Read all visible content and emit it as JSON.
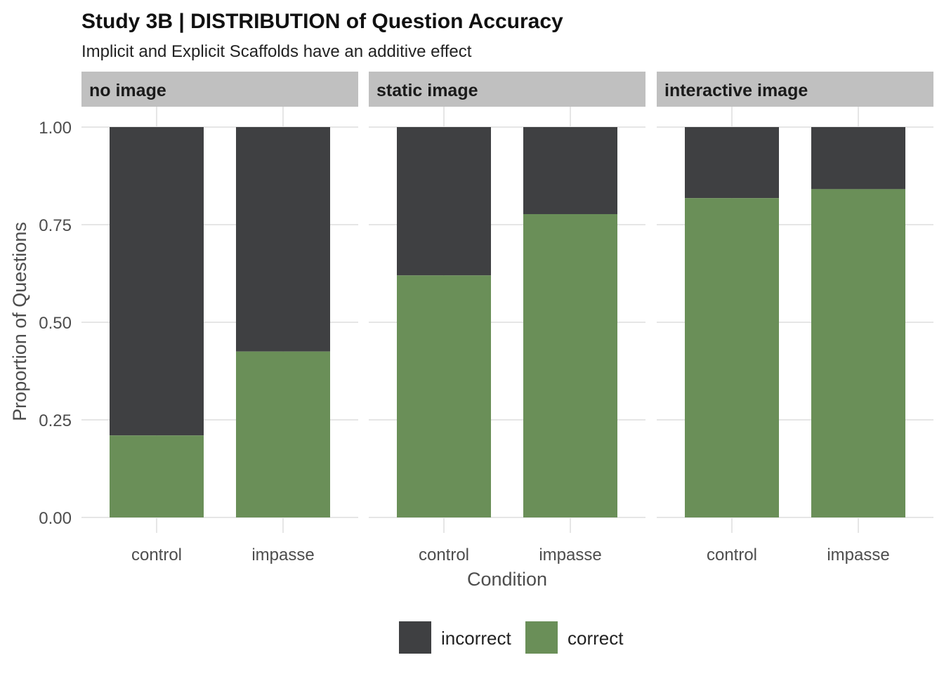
{
  "chart_data": {
    "type": "bar",
    "stacked": true,
    "title": "Study 3B | DISTRIBUTION of Question Accuracy",
    "subtitle": "Implicit and Explicit Scaffolds have an additive effect",
    "xlabel": "Condition",
    "ylabel": "Proportion of Questions",
    "ylim": [
      0,
      1
    ],
    "yticks": [
      "0.00",
      "0.25",
      "0.50",
      "0.75",
      "1.00"
    ],
    "ytick_values": [
      0,
      0.25,
      0.5,
      0.75,
      1
    ],
    "categories": [
      "control",
      "impasse"
    ],
    "grid": true,
    "legend_position": "bottom",
    "colors": {
      "incorrect": "#3f4042",
      "correct": "#6a8f58",
      "strip": "#c0c0c0",
      "grid": "#e6e6e6"
    },
    "legend": [
      {
        "key": "incorrect",
        "label": "incorrect"
      },
      {
        "key": "correct",
        "label": "correct"
      }
    ],
    "panels": [
      {
        "label": "no image",
        "bars": [
          {
            "category": "control",
            "correct": 0.21,
            "incorrect": 0.79
          },
          {
            "category": "impasse",
            "correct": 0.425,
            "incorrect": 0.575
          }
        ]
      },
      {
        "label": "static image",
        "bars": [
          {
            "category": "control",
            "correct": 0.62,
            "incorrect": 0.38
          },
          {
            "category": "impasse",
            "correct": 0.777,
            "incorrect": 0.223
          }
        ]
      },
      {
        "label": "interactive image",
        "bars": [
          {
            "category": "control",
            "correct": 0.818,
            "incorrect": 0.182
          },
          {
            "category": "impasse",
            "correct": 0.841,
            "incorrect": 0.159
          }
        ]
      }
    ]
  }
}
